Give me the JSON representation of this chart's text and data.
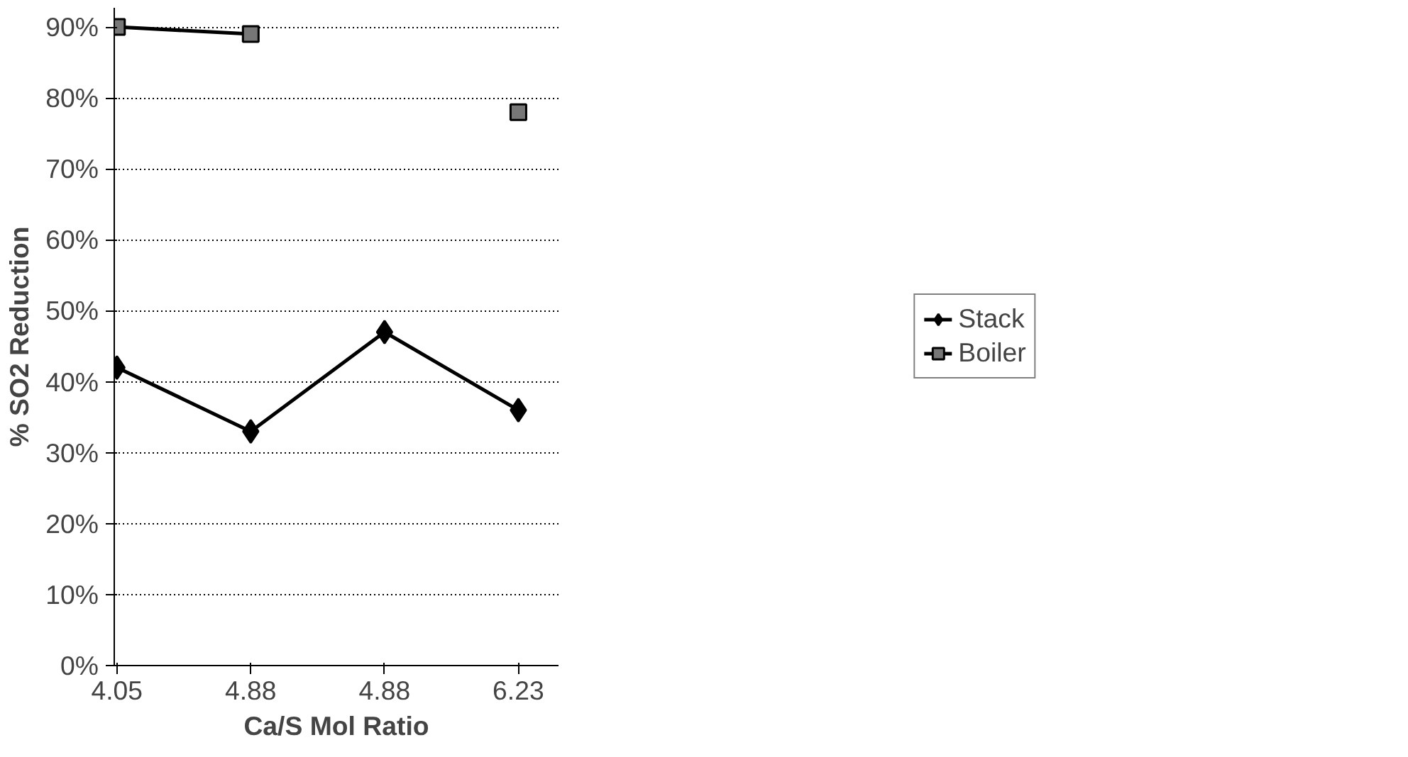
{
  "chart_data": {
    "type": "line",
    "xlabel": "Ca/S Mol Ratio",
    "ylabel": "% SO2 Reduction",
    "categories": [
      "4.05",
      "4.88",
      "4.88",
      "6.23"
    ],
    "series": [
      {
        "name": "Stack",
        "color": "#000000",
        "marker": "diamond",
        "values": [
          42,
          33,
          47,
          36
        ]
      },
      {
        "name": "Boiler",
        "color": "#000000",
        "marker": "square",
        "values": [
          90,
          89,
          null,
          78
        ]
      }
    ],
    "ylim": [
      0,
      90
    ],
    "yticks": [
      {
        "value": 0,
        "label": "0%"
      },
      {
        "value": 10,
        "label": "10%"
      },
      {
        "value": 20,
        "label": "20%"
      },
      {
        "value": 30,
        "label": "30%"
      },
      {
        "value": 40,
        "label": "40%"
      },
      {
        "value": 50,
        "label": "50%"
      },
      {
        "value": 60,
        "label": "60%"
      },
      {
        "value": 70,
        "label": "70%"
      },
      {
        "value": 80,
        "label": "80%"
      },
      {
        "value": 90,
        "label": "90%"
      }
    ],
    "grid": "y",
    "legend": "right",
    "line_style": "solid"
  }
}
